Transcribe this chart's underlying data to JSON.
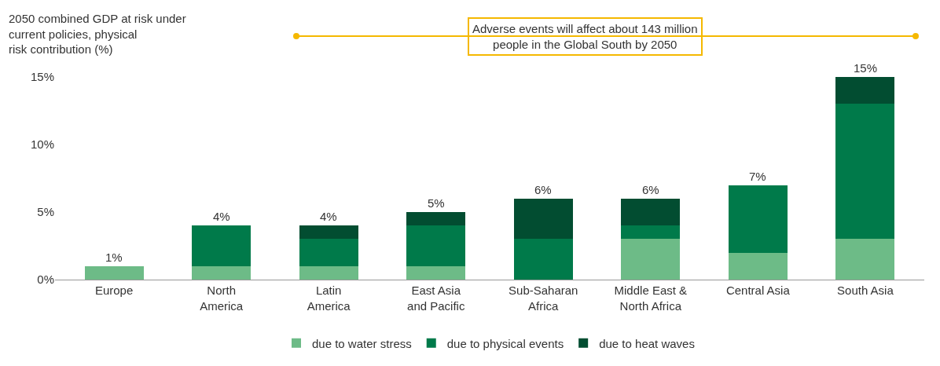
{
  "chart_data": {
    "type": "bar",
    "stacked": true,
    "ylabel": "2050 combined GDP at risk under\ncurrent policies, physical\nrisk contribution (%)",
    "annotations": [
      "Adverse events will affect about 143 million\npeople in the Global South by 2050"
    ],
    "categories": [
      "Europe",
      "North\nAmerica",
      "Latin\nAmerica",
      "East Asia\nand Pacific",
      "Sub-Saharan\nAfrica",
      "Middle East &\nNorth Africa",
      "Central Asia",
      "South Asia"
    ],
    "series": [
      {
        "name": "due to water stress",
        "color": "#6dbb87",
        "values": [
          1,
          1,
          1,
          1,
          0,
          3,
          2,
          3
        ]
      },
      {
        "name": "due to physical events",
        "color": "#007a4a",
        "values": [
          0,
          3,
          2,
          3,
          3,
          1,
          5,
          10
        ]
      },
      {
        "name": "due to heat waves",
        "color": "#024d31",
        "values": [
          0,
          0,
          1,
          1,
          3,
          2,
          0,
          2
        ]
      }
    ],
    "totals": [
      "1%",
      "4%",
      "4%",
      "5%",
      "6%",
      "6%",
      "7%",
      "15%"
    ],
    "ylim": [
      0,
      15
    ],
    "yticks": [
      {
        "value": 0,
        "label": "0%"
      },
      {
        "value": 5,
        "label": "5%"
      },
      {
        "value": 10,
        "label": "10%"
      },
      {
        "value": 15,
        "label": "15%"
      }
    ],
    "grid": false,
    "legend": "bottom"
  }
}
